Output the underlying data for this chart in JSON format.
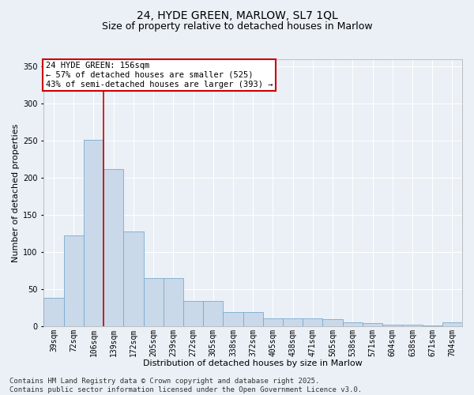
{
  "title_line1": "24, HYDE GREEN, MARLOW, SL7 1QL",
  "title_line2": "Size of property relative to detached houses in Marlow",
  "xlabel": "Distribution of detached houses by size in Marlow",
  "ylabel": "Number of detached properties",
  "categories": [
    "39sqm",
    "72sqm",
    "106sqm",
    "139sqm",
    "172sqm",
    "205sqm",
    "239sqm",
    "272sqm",
    "305sqm",
    "338sqm",
    "372sqm",
    "405sqm",
    "438sqm",
    "471sqm",
    "505sqm",
    "538sqm",
    "571sqm",
    "604sqm",
    "638sqm",
    "671sqm",
    "704sqm"
  ],
  "values": [
    38,
    122,
    251,
    212,
    128,
    65,
    65,
    34,
    34,
    19,
    19,
    10,
    10,
    10,
    9,
    5,
    4,
    2,
    2,
    1,
    5
  ],
  "bar_color": "#c9d9ea",
  "bar_edge_color": "#7aaad0",
  "vline_x_index": 3,
  "vline_color": "#cc0000",
  "annotation_text": "24 HYDE GREEN: 156sqm\n← 57% of detached houses are smaller (525)\n43% of semi-detached houses are larger (393) →",
  "annotation_box_color": "#ffffff",
  "annotation_box_edge_color": "#cc0000",
  "ylim": [
    0,
    360
  ],
  "yticks": [
    0,
    50,
    100,
    150,
    200,
    250,
    300,
    350
  ],
  "background_color": "#eaf0f6",
  "grid_color": "#ffffff",
  "footer_text": "Contains HM Land Registry data © Crown copyright and database right 2025.\nContains public sector information licensed under the Open Government Licence v3.0.",
  "title_fontsize": 10,
  "subtitle_fontsize": 9,
  "axis_fontsize": 8,
  "tick_fontsize": 7,
  "annotation_fontsize": 7.5,
  "footer_fontsize": 6.5
}
